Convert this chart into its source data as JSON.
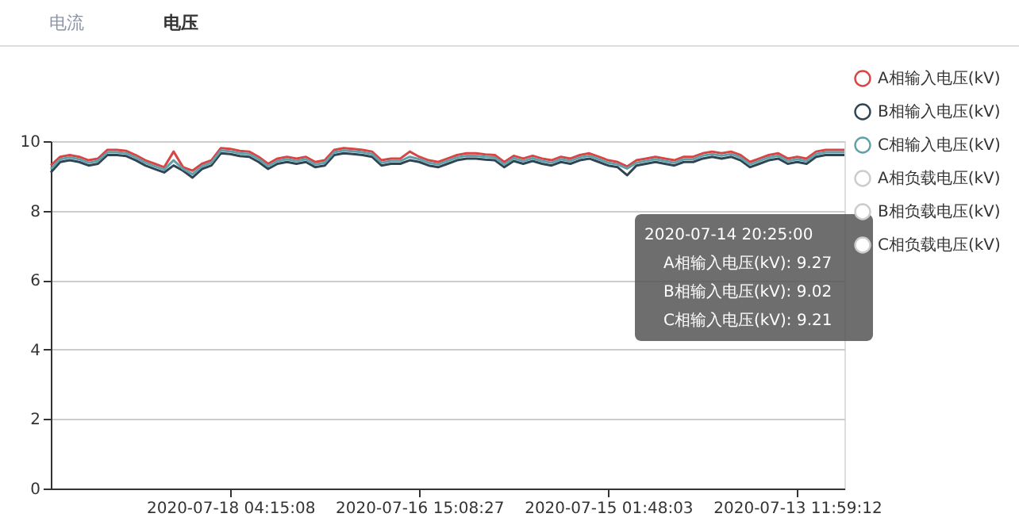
{
  "chart_data": {
    "type": "line",
    "categories": [
      null,
      null,
      null,
      null,
      null,
      null,
      null,
      null,
      null,
      null,
      null,
      null,
      null,
      null,
      null,
      null,
      null,
      null,
      null,
      "2020-07-18 04:15:08",
      null,
      null,
      null,
      null,
      null,
      null,
      null,
      null,
      null,
      null,
      null,
      null,
      null,
      null,
      null,
      null,
      null,
      null,
      null,
      "2020-07-16 15:08:27",
      null,
      null,
      null,
      null,
      null,
      null,
      null,
      null,
      null,
      null,
      null,
      null,
      null,
      null,
      null,
      null,
      null,
      null,
      null,
      "2020-07-15 01:48:03",
      null,
      null,
      null,
      null,
      null,
      null,
      null,
      null,
      null,
      null,
      null,
      null,
      null,
      null,
      null,
      null,
      null,
      null,
      null,
      "2020-07-13 11:59:12",
      null,
      null,
      null,
      null,
      null
    ],
    "series": [
      {
        "name": "A相输入电压(kV)",
        "color": "#d94545",
        "values": [
          9.3,
          9.55,
          9.6,
          9.55,
          9.45,
          9.5,
          9.75,
          9.75,
          9.72,
          9.6,
          9.45,
          9.35,
          9.25,
          9.7,
          9.25,
          9.15,
          9.35,
          9.45,
          9.8,
          9.78,
          9.72,
          9.7,
          9.55,
          9.35,
          9.5,
          9.55,
          9.5,
          9.55,
          9.4,
          9.45,
          9.75,
          9.8,
          9.78,
          9.75,
          9.7,
          9.45,
          9.5,
          9.5,
          9.7,
          9.55,
          9.45,
          9.4,
          9.5,
          9.6,
          9.65,
          9.65,
          9.62,
          9.6,
          9.4,
          9.58,
          9.5,
          9.58,
          9.5,
          9.45,
          9.55,
          9.5,
          9.6,
          9.65,
          9.55,
          9.45,
          9.4,
          9.27,
          9.45,
          9.5,
          9.55,
          9.5,
          9.45,
          9.55,
          9.55,
          9.65,
          9.7,
          9.65,
          9.7,
          9.6,
          9.4,
          9.5,
          9.6,
          9.65,
          9.5,
          9.55,
          9.5,
          9.7,
          9.75,
          9.75,
          9.75
        ]
      },
      {
        "name": "B相输入电压(kV)",
        "color": "#2f4554",
        "values": [
          9.1,
          9.4,
          9.45,
          9.4,
          9.3,
          9.35,
          9.6,
          9.6,
          9.57,
          9.45,
          9.3,
          9.2,
          9.1,
          9.3,
          9.15,
          8.95,
          9.2,
          9.3,
          9.65,
          9.63,
          9.57,
          9.55,
          9.4,
          9.2,
          9.35,
          9.4,
          9.35,
          9.4,
          9.25,
          9.3,
          9.6,
          9.65,
          9.63,
          9.6,
          9.55,
          9.3,
          9.35,
          9.35,
          9.45,
          9.4,
          9.3,
          9.25,
          9.35,
          9.45,
          9.5,
          9.5,
          9.47,
          9.45,
          9.25,
          9.43,
          9.35,
          9.43,
          9.35,
          9.3,
          9.4,
          9.35,
          9.45,
          9.5,
          9.4,
          9.3,
          9.25,
          9.02,
          9.3,
          9.35,
          9.4,
          9.35,
          9.3,
          9.4,
          9.4,
          9.5,
          9.55,
          9.5,
          9.55,
          9.45,
          9.25,
          9.35,
          9.45,
          9.5,
          9.35,
          9.4,
          9.35,
          9.55,
          9.6,
          9.6,
          9.6
        ]
      },
      {
        "name": "C相输入电压(kV)",
        "color": "#61a0a8",
        "values": [
          9.2,
          9.48,
          9.53,
          9.48,
          9.38,
          9.43,
          9.68,
          9.68,
          9.65,
          9.53,
          9.38,
          9.28,
          9.18,
          9.45,
          9.2,
          9.05,
          9.28,
          9.38,
          9.73,
          9.71,
          9.65,
          9.63,
          9.48,
          9.28,
          9.43,
          9.48,
          9.43,
          9.48,
          9.33,
          9.38,
          9.68,
          9.73,
          9.71,
          9.68,
          9.63,
          9.38,
          9.43,
          9.43,
          9.55,
          9.48,
          9.38,
          9.33,
          9.43,
          9.53,
          9.58,
          9.58,
          9.55,
          9.53,
          9.33,
          9.51,
          9.43,
          9.51,
          9.43,
          9.38,
          9.48,
          9.43,
          9.53,
          9.58,
          9.48,
          9.38,
          9.33,
          9.21,
          9.38,
          9.43,
          9.48,
          9.43,
          9.38,
          9.48,
          9.48,
          9.58,
          9.63,
          9.58,
          9.63,
          9.53,
          9.33,
          9.43,
          9.53,
          9.58,
          9.43,
          9.48,
          9.43,
          9.63,
          9.68,
          9.68,
          9.68
        ]
      },
      {
        "name": "A相负载电压(kV)",
        "color": "#cccccc",
        "values": [
          null,
          null,
          null,
          null,
          null,
          null,
          null,
          null,
          null,
          null,
          null,
          null,
          null,
          null,
          null,
          null,
          null,
          null,
          null,
          null,
          null,
          null,
          null,
          null,
          null,
          null,
          null,
          null,
          null,
          null,
          null,
          null,
          null,
          null,
          null,
          null,
          null,
          null,
          null,
          null,
          null,
          null,
          null,
          null,
          null,
          null,
          null,
          null,
          null,
          null,
          null,
          null,
          null,
          null,
          null,
          null,
          null,
          null,
          null,
          null,
          null,
          null,
          null,
          null,
          null,
          null,
          null,
          null,
          null,
          null,
          null,
          null,
          null,
          null,
          null,
          null,
          null,
          null,
          null,
          null,
          null,
          null,
          null,
          null,
          null
        ]
      },
      {
        "name": "B相负载电压(kV)",
        "color": "#cccccc",
        "values": [
          null,
          null,
          null,
          null,
          null,
          null,
          null,
          null,
          null,
          null,
          null,
          null,
          null,
          null,
          null,
          null,
          null,
          null,
          null,
          null,
          null,
          null,
          null,
          null,
          null,
          null,
          null,
          null,
          null,
          null,
          null,
          null,
          null,
          null,
          null,
          null,
          null,
          null,
          null,
          null,
          null,
          null,
          null,
          null,
          null,
          null,
          null,
          null,
          null,
          null,
          null,
          null,
          null,
          null,
          null,
          null,
          null,
          null,
          null,
          null,
          null,
          null,
          null,
          null,
          null,
          null,
          null,
          null,
          null,
          null,
          null,
          null,
          null,
          null,
          null,
          null,
          null,
          null,
          null,
          null,
          null,
          null,
          null,
          null,
          null
        ]
      },
      {
        "name": "C相负载电压(kV)",
        "color": "#cccccc",
        "values": [
          null,
          null,
          null,
          null,
          null,
          null,
          null,
          null,
          null,
          null,
          null,
          null,
          null,
          null,
          null,
          null,
          null,
          null,
          null,
          null,
          null,
          null,
          null,
          null,
          null,
          null,
          null,
          null,
          null,
          null,
          null,
          null,
          null,
          null,
          null,
          null,
          null,
          null,
          null,
          null,
          null,
          null,
          null,
          null,
          null,
          null,
          null,
          null,
          null,
          null,
          null,
          null,
          null,
          null,
          null,
          null,
          null,
          null,
          null,
          null,
          null,
          null,
          null,
          null,
          null,
          null,
          null,
          null,
          null,
          null,
          null,
          null,
          null,
          null,
          null,
          null,
          null,
          null,
          null,
          null,
          null,
          null,
          null,
          null,
          null
        ]
      }
    ],
    "ylim": [
      0,
      10
    ],
    "yticks": [
      0,
      2,
      4,
      6,
      8,
      10
    ],
    "grid": "y",
    "legend": "top right",
    "marker": "none",
    "line_style": "solid",
    "annotations": [
      "电流",
      "电压",
      "2020-07-14 20:25:00",
      "A相输入电压(kV): 9.27",
      "B相输入电压(kV): 9.02",
      "C相输入电压(kV): 9.21"
    ]
  }
}
